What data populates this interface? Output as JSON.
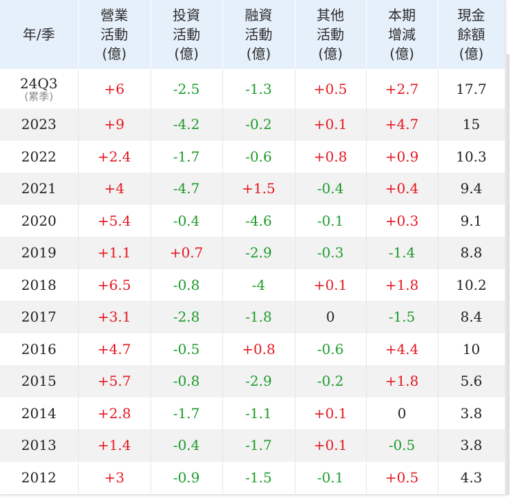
{
  "headers": [
    {
      "lines": [
        "年/季"
      ]
    },
    {
      "lines": [
        "營業",
        "活動",
        "(億)"
      ]
    },
    {
      "lines": [
        "投資",
        "活動",
        "(億)"
      ]
    },
    {
      "lines": [
        "融資",
        "活動",
        "(億)"
      ]
    },
    {
      "lines": [
        "其他",
        "活動",
        "(億)"
      ]
    },
    {
      "lines": [
        "本期",
        "增減",
        "(億)"
      ]
    },
    {
      "lines": [
        "現金",
        "餘額",
        "(億)"
      ]
    }
  ],
  "rows": [
    {
      "year": "24Q3",
      "note": "(累季)",
      "values": [
        "+6",
        "-2.5",
        "-1.3",
        "+0.5",
        "+2.7"
      ],
      "cash": "17.7"
    },
    {
      "year": "2023",
      "values": [
        "+9",
        "-4.2",
        "-0.2",
        "+0.1",
        "+4.7"
      ],
      "cash": "15"
    },
    {
      "year": "2022",
      "values": [
        "+2.4",
        "-1.7",
        "-0.6",
        "+0.8",
        "+0.9"
      ],
      "cash": "10.3"
    },
    {
      "year": "2021",
      "values": [
        "+4",
        "-4.7",
        "+1.5",
        "-0.4",
        "+0.4"
      ],
      "cash": "9.4"
    },
    {
      "year": "2020",
      "values": [
        "+5.4",
        "-0.4",
        "-4.6",
        "-0.1",
        "+0.3"
      ],
      "cash": "9.1"
    },
    {
      "year": "2019",
      "values": [
        "+1.1",
        "+0.7",
        "-2.9",
        "-0.3",
        "-1.4"
      ],
      "cash": "8.8"
    },
    {
      "year": "2018",
      "values": [
        "+6.5",
        "-0.8",
        "-4",
        "+0.1",
        "+1.8"
      ],
      "cash": "10.2"
    },
    {
      "year": "2017",
      "values": [
        "+3.1",
        "-2.8",
        "-1.8",
        "0",
        "-1.5"
      ],
      "cash": "8.4"
    },
    {
      "year": "2016",
      "values": [
        "+4.7",
        "-0.5",
        "+0.8",
        "-0.6",
        "+4.4"
      ],
      "cash": "10"
    },
    {
      "year": "2015",
      "values": [
        "+5.7",
        "-0.8",
        "-2.9",
        "-0.2",
        "+1.8"
      ],
      "cash": "5.6"
    },
    {
      "year": "2014",
      "values": [
        "+2.8",
        "-1.7",
        "-1.1",
        "+0.1",
        "0"
      ],
      "cash": "3.8"
    },
    {
      "year": "2013",
      "values": [
        "+1.4",
        "-0.4",
        "-1.7",
        "+0.1",
        "-0.5"
      ],
      "cash": "3.8"
    },
    {
      "year": "2012",
      "values": [
        "+3",
        "-0.9",
        "-1.5",
        "-0.1",
        "+0.5"
      ],
      "cash": "4.3"
    }
  ],
  "colors": {
    "positive": "#e5161e",
    "negative": "#1c9a2a",
    "neutral": "#222222",
    "header_bg": "#e6f0fb",
    "stripe_bg": "#f2f2f2"
  }
}
